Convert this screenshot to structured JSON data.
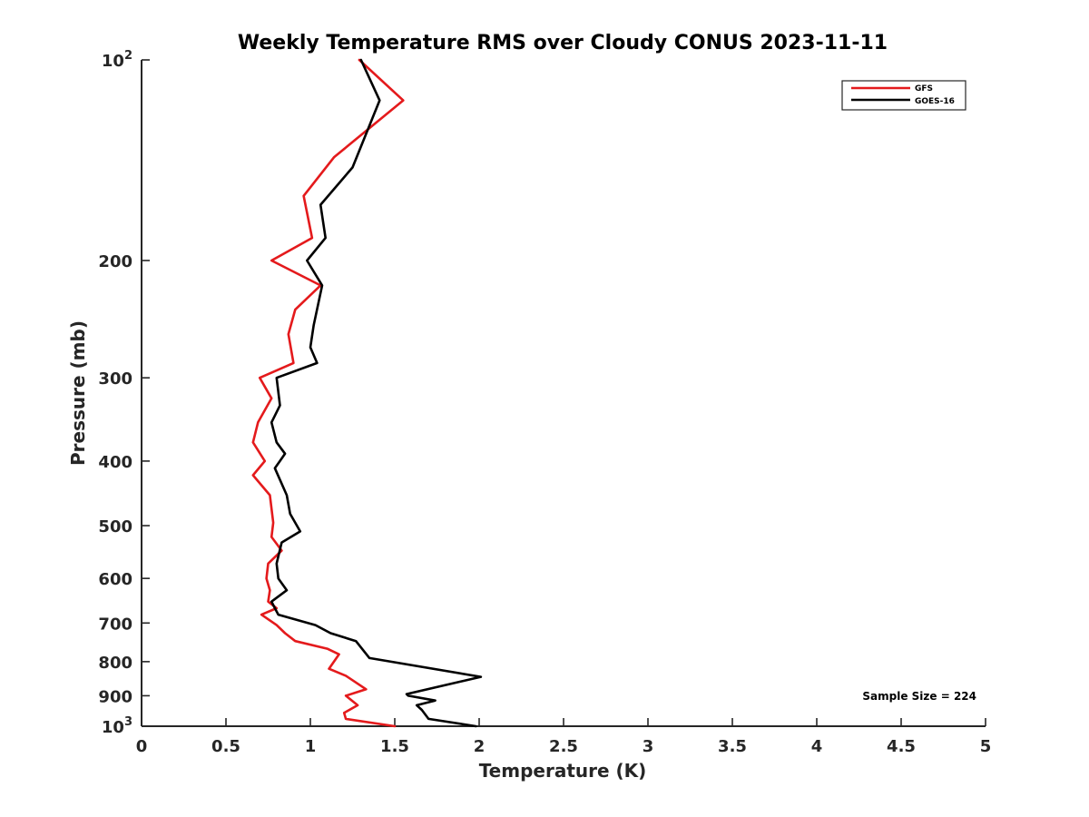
{
  "chart_data": {
    "type": "line",
    "title": "Weekly Temperature RMS over Cloudy CONUS 2023-11-11",
    "xlabel": "Temperature (K)",
    "ylabel": "Pressure (mb)",
    "xlim": [
      0,
      5
    ],
    "ylim": [
      100,
      1000
    ],
    "y_scale": "log",
    "y_reversed": true,
    "grid": false,
    "legend_position": "top-right",
    "x_ticks": [
      "0",
      "0.5",
      "1",
      "1.5",
      "2",
      "2.5",
      "3",
      "3.5",
      "4",
      "4.5",
      "5"
    ],
    "y_ticks": [
      {
        "value": 100,
        "base": "10",
        "exp": "2"
      },
      {
        "value": 200,
        "label": "200"
      },
      {
        "value": 300,
        "label": "300"
      },
      {
        "value": 400,
        "label": "400"
      },
      {
        "value": 500,
        "label": "500"
      },
      {
        "value": 600,
        "label": "600"
      },
      {
        "value": 700,
        "label": "700"
      },
      {
        "value": 800,
        "label": "800"
      },
      {
        "value": 900,
        "label": "900"
      },
      {
        "value": 1000,
        "base": "10",
        "exp": "3"
      }
    ],
    "annotation": "Sample Size = 224",
    "series": [
      {
        "name": "GFS",
        "color": "#e41a1c",
        "x": [
          1.29,
          1.55,
          1.14,
          0.96,
          1.01,
          0.77,
          1.06,
          0.91,
          0.87,
          0.9,
          0.7,
          0.77,
          0.69,
          0.66,
          0.73,
          0.66,
          0.76,
          0.78,
          0.77,
          0.83,
          0.75,
          0.74,
          0.76,
          0.75,
          0.8,
          0.71,
          0.8,
          0.85,
          0.91,
          1.1,
          1.17,
          1.11,
          1.21,
          1.33,
          1.21,
          1.28,
          1.2,
          1.21,
          1.5
        ],
        "y": [
          100,
          115,
          140,
          160,
          185,
          200,
          218,
          237,
          258,
          285,
          300,
          322,
          350,
          375,
          400,
          420,
          450,
          495,
          520,
          545,
          570,
          600,
          625,
          650,
          665,
          680,
          705,
          725,
          745,
          765,
          780,
          820,
          840,
          880,
          900,
          930,
          955,
          975,
          1000
        ]
      },
      {
        "name": "GOES-16",
        "color": "#000000",
        "x": [
          1.3,
          1.41,
          1.25,
          1.06,
          1.09,
          0.98,
          1.07,
          1.02,
          1.0,
          1.04,
          0.8,
          0.82,
          0.77,
          0.8,
          0.85,
          0.79,
          0.86,
          0.88,
          0.94,
          0.83,
          0.8,
          0.81,
          0.86,
          0.77,
          0.79,
          0.81,
          1.03,
          1.12,
          1.27,
          1.35,
          2.01,
          1.57,
          1.58,
          1.74,
          1.63,
          1.66,
          1.7,
          1.98
        ],
        "y": [
          100,
          115,
          145,
          165,
          185,
          200,
          218,
          250,
          270,
          285,
          300,
          330,
          350,
          375,
          390,
          410,
          450,
          480,
          510,
          530,
          570,
          600,
          625,
          650,
          665,
          680,
          705,
          725,
          745,
          790,
          843,
          895,
          900,
          915,
          930,
          945,
          975,
          1000
        ]
      }
    ]
  }
}
